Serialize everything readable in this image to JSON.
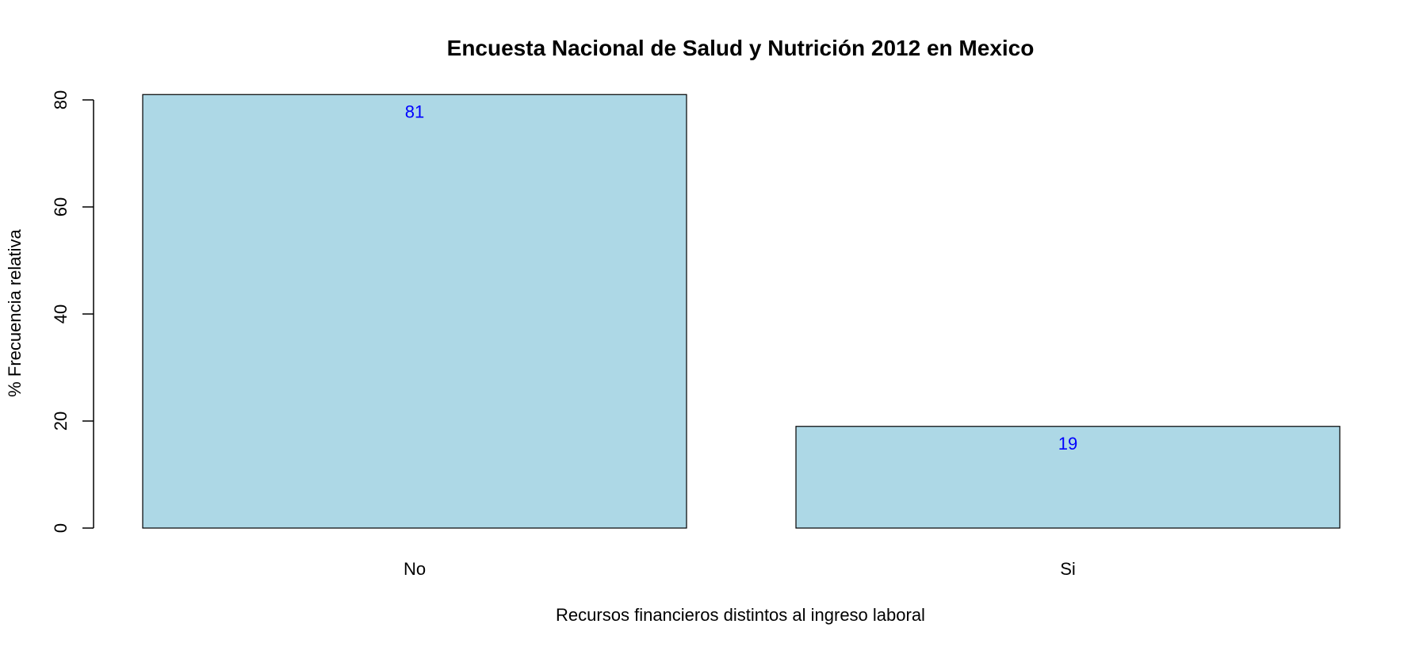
{
  "chart_data": {
    "type": "bar",
    "title": "Encuesta Nacional de Salud y Nutrición 2012 en Mexico",
    "xlabel": "Recursos financieros distintos al ingreso laboral",
    "ylabel": "% Frecuencia relativa",
    "categories": [
      "No",
      "Si"
    ],
    "values": [
      81,
      19
    ],
    "data_labels": [
      "81",
      "19"
    ],
    "ylim": [
      0,
      80
    ],
    "yticks": [
      0,
      20,
      40,
      60,
      80
    ],
    "ytick_labels": [
      "0",
      "20",
      "40",
      "60",
      "80"
    ],
    "grid": false,
    "legend": "none",
    "colors": {
      "bar_fill": "#ADD8E6",
      "bar_stroke": "#000000",
      "data_label": "#0000FF",
      "axis": "#000000"
    }
  }
}
